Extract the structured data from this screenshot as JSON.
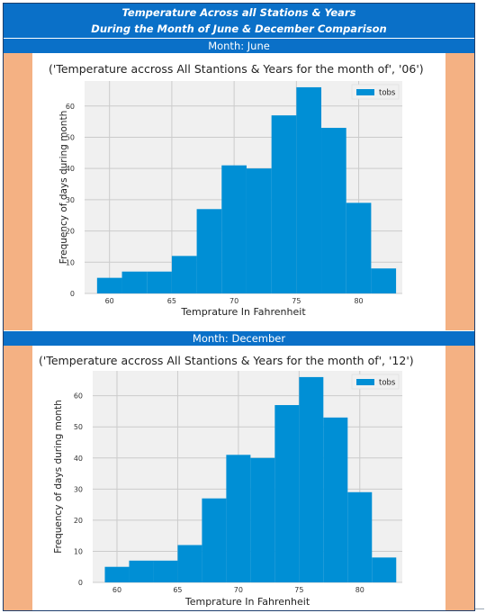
{
  "header": {
    "title_line1": "Temperature Across all Stations & Years",
    "title_line2": "During the Month of June & December Comparison"
  },
  "sections": [
    {
      "label": "Month: June"
    },
    {
      "label": "Month: December"
    }
  ],
  "colors": {
    "band": "#0a70c8",
    "side": "#f4b183",
    "bar": "#008fd5",
    "plot_bg": "#f0f0f0",
    "grid": "#cbcbcb"
  },
  "chart_data": [
    {
      "type": "bar",
      "title": "('Temperature accross All Stantions & Years for the month of', '06')",
      "xlabel": "Temprature In Fahrenheit",
      "ylabel": "Frequency of days during month",
      "legend": [
        "tobs"
      ],
      "legend_position": "top-right",
      "grid": true,
      "xlim": [
        58,
        83.5
      ],
      "ylim": [
        0,
        68
      ],
      "xticks": [
        60,
        65,
        70,
        75,
        80
      ],
      "yticks": [
        0,
        10,
        20,
        30,
        40,
        50,
        60
      ],
      "bin_edges": [
        59,
        61,
        63,
        65,
        67,
        69,
        71,
        73,
        75,
        77,
        79,
        81,
        83
      ],
      "values": [
        5,
        7,
        7,
        12,
        27,
        41,
        40,
        57,
        66,
        53,
        29,
        8
      ]
    },
    {
      "type": "bar",
      "title": "('Temperature accross All Stantions & Years for the month of', '12')",
      "xlabel": "Temprature In Fahrenheit",
      "ylabel": "Frequency of days during month",
      "legend": [
        "tobs"
      ],
      "legend_position": "top-right",
      "grid": true,
      "xlim": [
        58,
        83.5
      ],
      "ylim": [
        0,
        68
      ],
      "xticks": [
        60,
        65,
        70,
        75,
        80
      ],
      "yticks": [
        0,
        10,
        20,
        30,
        40,
        50,
        60
      ],
      "bin_edges": [
        59,
        61,
        63,
        65,
        67,
        69,
        71,
        73,
        75,
        77,
        79,
        81,
        83
      ],
      "values": [
        5,
        7,
        7,
        12,
        27,
        41,
        40,
        57,
        66,
        53,
        29,
        8
      ]
    }
  ]
}
